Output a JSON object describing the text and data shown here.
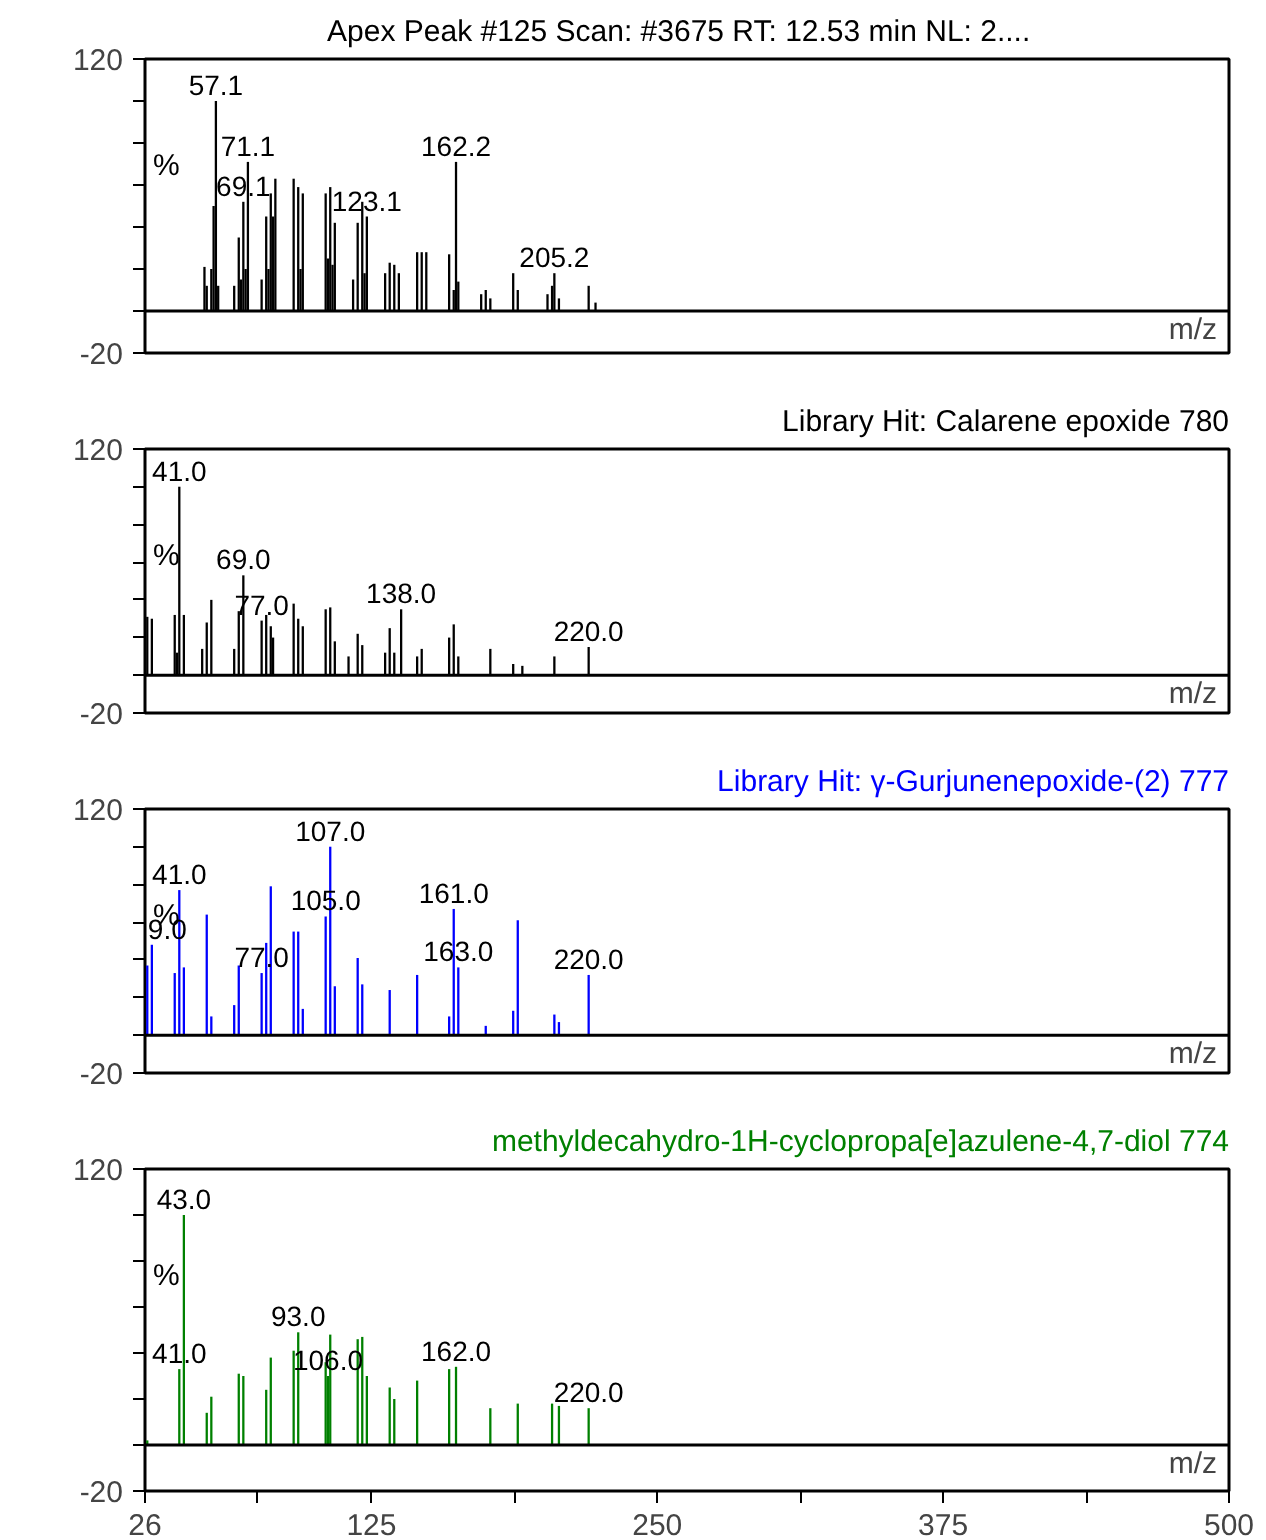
{
  "chart_data": [
    {
      "type": "bar",
      "title": "Apex Peak #125 Scan: #3675   RT: 12.53 min NL: 2....",
      "ylabel": "%",
      "xlabel": "m/z",
      "series": [
        {
          "color": "#000000",
          "x": [
            52,
            53,
            55,
            56,
            57,
            58,
            65,
            67,
            68,
            69,
            70,
            71,
            77,
            79,
            80,
            81,
            82,
            83,
            91,
            93,
            94,
            95,
            105,
            106,
            107,
            108,
            109,
            117,
            119,
            121,
            122,
            123,
            131,
            133,
            135,
            137,
            145,
            147,
            149,
            159,
            161,
            162,
            163,
            173,
            175,
            177,
            187,
            189,
            202,
            204,
            205,
            207,
            220,
            223
          ],
          "values": [
            21,
            12,
            20,
            50,
            100,
            12,
            12,
            35,
            15,
            52,
            20,
            71,
            15,
            45,
            20,
            56,
            45,
            63,
            63,
            59,
            20,
            56,
            56,
            25,
            59,
            22,
            42,
            15,
            42,
            52,
            18,
            45,
            18,
            23,
            22,
            18,
            28,
            28,
            28,
            27,
            10,
            71,
            14,
            8,
            10,
            6,
            18,
            10,
            8,
            12,
            18,
            6,
            12,
            4
          ]
        }
      ],
      "annotations": [
        {
          "text": "57.1",
          "x": 57,
          "y": 100
        },
        {
          "text": "71.1",
          "x": 71,
          "y": 71
        },
        {
          "text": "69.1",
          "x": 69,
          "y": 52
        },
        {
          "text": "123.1",
          "x": 123,
          "y": 45
        },
        {
          "text": "162.2",
          "x": 162,
          "y": 71
        },
        {
          "text": "205.2",
          "x": 205,
          "y": 18
        }
      ],
      "ref_lines": [
        {
          "axis": "y",
          "value": 0,
          "label": null
        }
      ],
      "xlim": [
        26,
        500
      ],
      "ylim": [
        -20,
        120
      ],
      "yticks": [
        120,
        {
          "value": 100,
          "label": null
        },
        {
          "value": 80,
          "label": null
        },
        {
          "value": 60,
          "label": null
        },
        {
          "value": 40,
          "label": null
        },
        {
          "value": 20,
          "label": null
        },
        {
          "value": 0,
          "label": null
        },
        -20
      ],
      "tick_labels": "y"
    },
    {
      "type": "bar",
      "title": "Library Hit: Calarene epoxide 780",
      "ylabel": "%",
      "xlabel": "m/z",
      "series": [
        {
          "color": "#000000",
          "x": [
            27,
            29,
            39,
            40,
            41,
            43,
            51,
            53,
            55,
            65,
            67,
            69,
            77,
            79,
            81,
            82,
            91,
            93,
            95,
            105,
            107,
            109,
            115,
            119,
            121,
            131,
            133,
            135,
            138,
            145,
            147,
            159,
            161,
            163,
            177,
            187,
            191,
            205,
            220
          ],
          "values": [
            31,
            30,
            32,
            12,
            100,
            32,
            14,
            28,
            40,
            14,
            34,
            53,
            29,
            32,
            26,
            20,
            38,
            30,
            26,
            35,
            36,
            18,
            10,
            22,
            16,
            12,
            25,
            12,
            35,
            10,
            14,
            20,
            27,
            10,
            14,
            6,
            5,
            10,
            15
          ]
        }
      ],
      "annotations": [
        {
          "text": "41.0",
          "x": 41,
          "y": 100
        },
        {
          "text": "69.0",
          "x": 69,
          "y": 53
        },
        {
          "text": "77.0",
          "x": 77,
          "y": 29
        },
        {
          "text": "138.0",
          "x": 138,
          "y": 35
        },
        {
          "text": "220.0",
          "x": 220,
          "y": 15
        }
      ],
      "ref_lines": [
        {
          "axis": "y",
          "value": 0,
          "label": null
        }
      ],
      "xlim": [
        26,
        500
      ],
      "ylim": [
        -20,
        120
      ],
      "yticks": [
        120,
        {
          "value": 100,
          "label": null
        },
        {
          "value": 80,
          "label": null
        },
        {
          "value": 60,
          "label": null
        },
        {
          "value": 40,
          "label": null
        },
        {
          "value": 20,
          "label": null
        },
        {
          "value": 0,
          "label": null
        },
        -20
      ],
      "tick_labels": "y"
    },
    {
      "type": "bar",
      "title": "Library Hit: γ-Gurjunenepoxide-(2) 777",
      "ylabel": "%",
      "xlabel": "m/z",
      "series": [
        {
          "color": "#0000ff",
          "x": [
            27,
            29,
            39,
            41,
            43,
            53,
            55,
            65,
            67,
            77,
            79,
            81,
            91,
            93,
            95,
            105,
            107,
            109,
            119,
            121,
            133,
            145,
            159,
            161,
            163,
            175,
            187,
            189,
            205,
            207,
            220
          ],
          "values": [
            37,
            48,
            33,
            77,
            36,
            64,
            10,
            16,
            37,
            33,
            49,
            79,
            55,
            55,
            14,
            63,
            100,
            26,
            41,
            27,
            24,
            32,
            10,
            67,
            36,
            5,
            13,
            61,
            11,
            7,
            32
          ]
        }
      ],
      "annotations": [
        {
          "text": "41.0",
          "x": 41,
          "y": 77
        },
        {
          "text": "9.0",
          "x": 29,
          "y": 48
        },
        {
          "text": "77.0",
          "x": 77,
          "y": 33
        },
        {
          "text": "105.0",
          "x": 105,
          "y": 63
        },
        {
          "text": "107.0",
          "x": 107,
          "y": 100
        },
        {
          "text": "161.0",
          "x": 161,
          "y": 67
        },
        {
          "text": "163.0",
          "x": 163,
          "y": 36
        },
        {
          "text": "220.0",
          "x": 220,
          "y": 32
        }
      ],
      "ref_lines": [
        {
          "axis": "y",
          "value": 0,
          "label": null
        }
      ],
      "xlim": [
        26,
        500
      ],
      "ylim": [
        -20,
        120
      ],
      "yticks": [
        120,
        {
          "value": 100,
          "label": null
        },
        {
          "value": 80,
          "label": null
        },
        {
          "value": 60,
          "label": null
        },
        {
          "value": 40,
          "label": null
        },
        {
          "value": 20,
          "label": null
        },
        {
          "value": 0,
          "label": null
        },
        -20
      ],
      "tick_labels": "y"
    },
    {
      "type": "bar",
      "title": "methyldecahydro-1H-cyclopropa[e]azulene-4,7-diol 774",
      "ylabel": "%",
      "xlabel": "m/z",
      "series": [
        {
          "color": "#008000",
          "x": [
            27,
            41,
            43,
            53,
            55,
            67,
            69,
            79,
            81,
            91,
            93,
            105,
            106,
            107,
            119,
            121,
            123,
            133,
            135,
            145,
            159,
            162,
            177,
            189,
            204,
            207,
            220
          ],
          "values": [
            2,
            33,
            100,
            14,
            21,
            31,
            30,
            24,
            38,
            41,
            49,
            36,
            30,
            48,
            46,
            47,
            30,
            25,
            20,
            28,
            33,
            34,
            16,
            18,
            18,
            17,
            16
          ]
        }
      ],
      "annotations": [
        {
          "text": "43.0",
          "x": 43,
          "y": 100
        },
        {
          "text": "41.0",
          "x": 41,
          "y": 33
        },
        {
          "text": "93.0",
          "x": 93,
          "y": 49
        },
        {
          "text": "106.0",
          "x": 106,
          "y": 30
        },
        {
          "text": "162.0",
          "x": 162,
          "y": 34
        },
        {
          "text": "220.0",
          "x": 220,
          "y": 16
        }
      ],
      "ref_lines": [
        {
          "axis": "y",
          "value": 0,
          "label": null
        }
      ],
      "xlim": [
        26,
        500
      ],
      "ylim": [
        -20,
        120
      ],
      "xticks": [
        26,
        {
          "value": 75,
          "label": null
        },
        125,
        {
          "value": 187.5,
          "label": null
        },
        250,
        {
          "value": 312.5,
          "label": null
        },
        375,
        {
          "value": 437.5,
          "label": null
        },
        500
      ],
      "yticks": [
        120,
        {
          "value": 100,
          "label": null
        },
        {
          "value": 80,
          "label": null
        },
        {
          "value": 60,
          "label": null
        },
        {
          "value": 40,
          "label": null
        },
        {
          "value": 20,
          "label": null
        },
        {
          "value": 0,
          "label": null
        },
        -20
      ]
    }
  ]
}
